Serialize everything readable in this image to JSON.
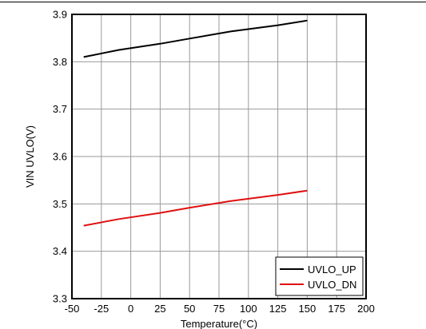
{
  "chart_data": {
    "type": "line",
    "title": "",
    "xlabel": "Temperature(°C)",
    "ylabel": "VIN UVLO(V)",
    "xlim": [
      -50,
      200
    ],
    "ylim": [
      3.3,
      3.9
    ],
    "x_ticks": [
      "-50",
      "-25",
      "0",
      "25",
      "50",
      "75",
      "100",
      "125",
      "150",
      "175",
      "200"
    ],
    "y_ticks": [
      "3.3",
      "3.4",
      "3.5",
      "3.6",
      "3.7",
      "3.8",
      "3.9"
    ],
    "grid": true,
    "legend_position": "bottom-right",
    "series": [
      {
        "name": "UVLO_UP",
        "color": "#000000",
        "x": [
          -40,
          -10,
          25,
          50,
          85,
          125,
          150
        ],
        "y": [
          3.81,
          3.825,
          3.838,
          3.849,
          3.864,
          3.877,
          3.887
        ]
      },
      {
        "name": "UVLO_DN",
        "color": "#e01010",
        "x": [
          -40,
          -10,
          25,
          50,
          85,
          125,
          150
        ],
        "y": [
          3.454,
          3.468,
          3.481,
          3.492,
          3.506,
          3.519,
          3.528
        ]
      }
    ]
  }
}
